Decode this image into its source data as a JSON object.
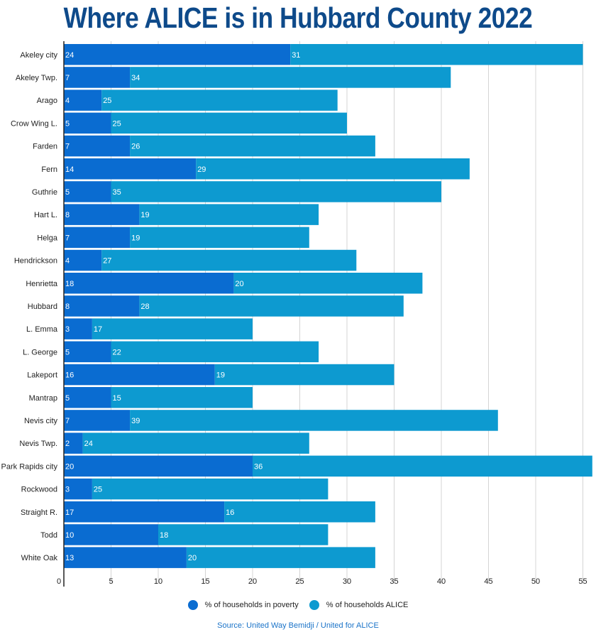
{
  "chart_data": {
    "type": "bar",
    "orientation": "horizontal",
    "stacked": true,
    "title": "Where ALICE is in Hubbard County 2022",
    "categories": [
      "Akeley city",
      "Akeley Twp.",
      "Arago",
      "Crow Wing L.",
      "Farden",
      "Fern",
      "Guthrie",
      "Hart L.",
      "Helga",
      "Hendrickson",
      "Henrietta",
      "Hubbard",
      "L. Emma",
      "L. George",
      "Lakeport",
      "Mantrap",
      "Nevis city",
      "Nevis Twp.",
      "Park Rapids city",
      "Rockwood",
      "Straight R.",
      "Todd",
      "White Oak"
    ],
    "series": [
      {
        "name": "% of households in poverty",
        "color": "#0a6cd1",
        "values": [
          24,
          7,
          4,
          5,
          7,
          14,
          5,
          8,
          7,
          4,
          18,
          8,
          3,
          5,
          16,
          5,
          7,
          2,
          20,
          3,
          17,
          10,
          13
        ]
      },
      {
        "name": "% of households ALICE",
        "color": "#0d9ad0",
        "values": [
          31,
          34,
          25,
          25,
          26,
          29,
          35,
          19,
          19,
          27,
          20,
          28,
          17,
          22,
          19,
          15,
          39,
          24,
          36,
          25,
          16,
          18,
          20
        ]
      }
    ],
    "xlim": [
      0,
      55
    ],
    "xticks": [
      0,
      5,
      10,
      15,
      20,
      25,
      30,
      35,
      40,
      45,
      50,
      55
    ],
    "grid": true,
    "legend_position": "bottom"
  },
  "source": "Source:  United Way Bemidji / United for ALICE",
  "colors": {
    "title": "#0e4a8a",
    "source": "#1a73c8",
    "grid": "#d4d4d4"
  }
}
